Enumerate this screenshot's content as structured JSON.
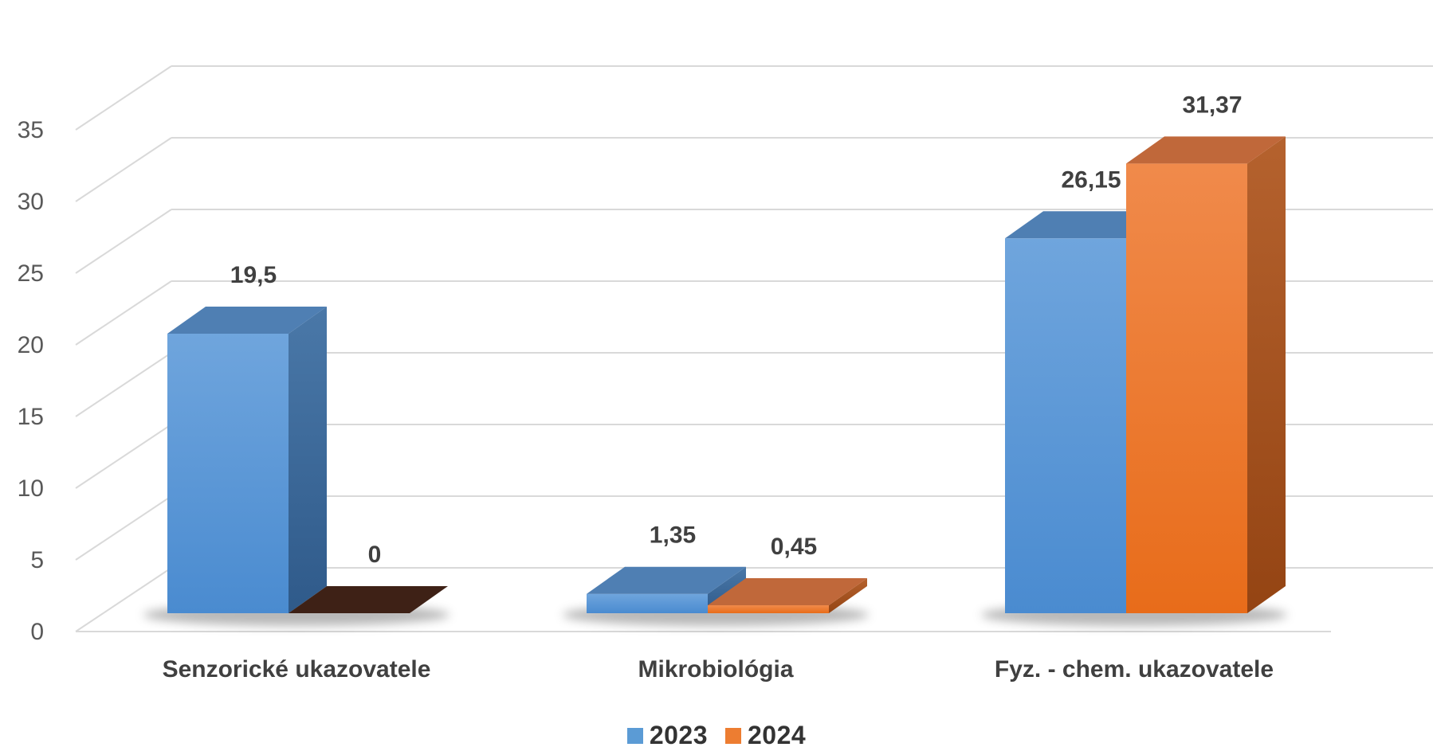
{
  "chart_data": {
    "type": "bar",
    "style": "3d-clustered-column",
    "categories": [
      "Senzorické ukazovatele",
      "Mikrobiológia",
      "Fyz. - chem. ukazovatele"
    ],
    "series": [
      {
        "name": "2023",
        "values": [
          19.5,
          1.35,
          26.15
        ],
        "labels": [
          "19,5",
          "1,35",
          "26,15"
        ],
        "color": "#5b9bd5"
      },
      {
        "name": "2024",
        "values": [
          0,
          0.45,
          31.37
        ],
        "labels": [
          "0",
          "0,45",
          "31,37"
        ],
        "color": "#ed7d31"
      }
    ],
    "title": "",
    "xlabel": "",
    "ylabel": "",
    "ylim": [
      0,
      35
    ],
    "yticks": [
      "0",
      "5",
      "10",
      "15",
      "20",
      "25",
      "30",
      "35"
    ],
    "grid": true,
    "legend_position": "bottom"
  }
}
